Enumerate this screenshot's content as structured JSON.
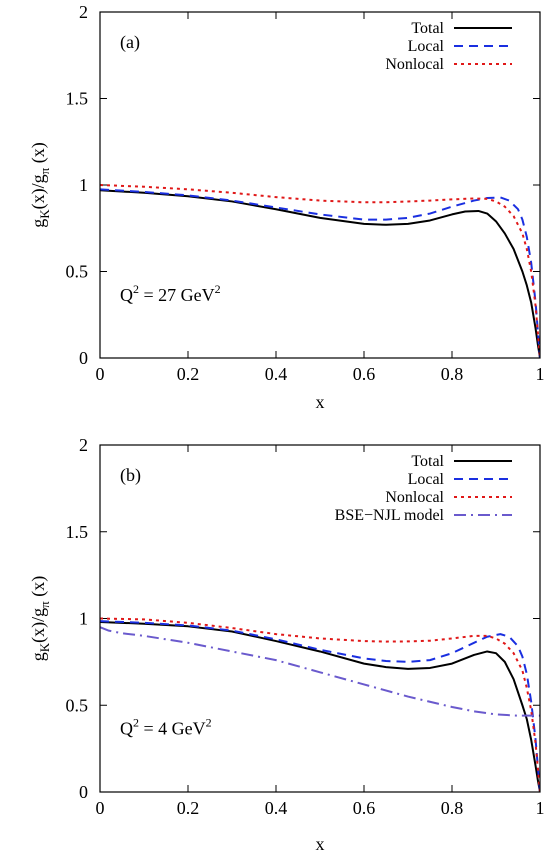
{
  "chart_data": [
    {
      "type": "line",
      "panel_label": "(a)",
      "annotation": {
        "base": "Q",
        "sup1": "2",
        "mid": " = 27 GeV",
        "sup2": "2"
      },
      "ylabel": {
        "p1": "g",
        "s1": "K",
        "p2": "(x)/g",
        "s2": "π",
        "p3": " (x)"
      },
      "xlabel": "x",
      "xlim": [
        0,
        1
      ],
      "ylim": [
        0,
        2
      ],
      "xticks": [
        {
          "v": 0,
          "label": "0"
        },
        {
          "v": 0.2,
          "label": "0.2"
        },
        {
          "v": 0.4,
          "label": "0.4"
        },
        {
          "v": 0.6,
          "label": "0.6"
        },
        {
          "v": 0.8,
          "label": "0.8"
        },
        {
          "v": 1,
          "label": "1"
        }
      ],
      "yticks": [
        {
          "v": 0,
          "label": "0"
        },
        {
          "v": 0.5,
          "label": "0.5"
        },
        {
          "v": 1,
          "label": "1"
        },
        {
          "v": 1.5,
          "label": "1.5"
        },
        {
          "v": 2,
          "label": "2"
        }
      ],
      "legend_position": "top-right",
      "series": [
        {
          "name": "Total",
          "color": "#000000",
          "style": "solid",
          "x": [
            0,
            0.1,
            0.2,
            0.3,
            0.4,
            0.5,
            0.6,
            0.65,
            0.7,
            0.75,
            0.8,
            0.83,
            0.86,
            0.88,
            0.9,
            0.92,
            0.94,
            0.96,
            0.97,
            0.98,
            0.99,
            0.995,
            1.0
          ],
          "y": [
            0.97,
            0.955,
            0.935,
            0.905,
            0.86,
            0.81,
            0.775,
            0.77,
            0.775,
            0.795,
            0.83,
            0.847,
            0.85,
            0.835,
            0.79,
            0.72,
            0.63,
            0.5,
            0.42,
            0.32,
            0.17,
            0.08,
            0
          ]
        },
        {
          "name": "Local",
          "color": "#1a2fe0",
          "style": "dashed",
          "x": [
            0,
            0.1,
            0.2,
            0.3,
            0.4,
            0.5,
            0.6,
            0.65,
            0.7,
            0.75,
            0.8,
            0.85,
            0.88,
            0.91,
            0.93,
            0.95,
            0.96,
            0.97,
            0.98,
            0.99,
            0.995,
            1.0
          ],
          "y": [
            0.975,
            0.96,
            0.94,
            0.91,
            0.87,
            0.83,
            0.8,
            0.8,
            0.81,
            0.835,
            0.875,
            0.91,
            0.925,
            0.928,
            0.91,
            0.86,
            0.8,
            0.7,
            0.55,
            0.32,
            0.16,
            0
          ]
        },
        {
          "name": "Nonlocal",
          "color": "#e01818",
          "style": "dotted",
          "x": [
            0,
            0.1,
            0.2,
            0.3,
            0.4,
            0.5,
            0.6,
            0.65,
            0.7,
            0.75,
            0.8,
            0.85,
            0.88,
            0.9,
            0.92,
            0.94,
            0.96,
            0.97,
            0.98,
            0.99,
            0.995,
            1.0
          ],
          "y": [
            1.0,
            0.99,
            0.975,
            0.955,
            0.93,
            0.91,
            0.9,
            0.9,
            0.905,
            0.91,
            0.917,
            0.922,
            0.92,
            0.905,
            0.875,
            0.82,
            0.72,
            0.63,
            0.5,
            0.3,
            0.15,
            0
          ]
        }
      ]
    },
    {
      "type": "line",
      "panel_label": "(b)",
      "annotation": {
        "base": "Q",
        "sup1": "2",
        "mid": " = 4 GeV",
        "sup2": "2"
      },
      "ylabel": {
        "p1": "g",
        "s1": "K",
        "p2": "(x)/g",
        "s2": "π",
        "p3": " (x)"
      },
      "xlabel": "x",
      "xlim": [
        0,
        1
      ],
      "ylim": [
        0,
        2
      ],
      "xticks": [
        {
          "v": 0,
          "label": "0"
        },
        {
          "v": 0.2,
          "label": "0.2"
        },
        {
          "v": 0.4,
          "label": "0.4"
        },
        {
          "v": 0.6,
          "label": "0.6"
        },
        {
          "v": 0.8,
          "label": "0.8"
        },
        {
          "v": 1,
          "label": "1"
        }
      ],
      "yticks": [
        {
          "v": 0,
          "label": "0"
        },
        {
          "v": 0.5,
          "label": "0.5"
        },
        {
          "v": 1,
          "label": "1"
        },
        {
          "v": 1.5,
          "label": "1.5"
        },
        {
          "v": 2,
          "label": "2"
        }
      ],
      "legend_position": "top-right",
      "series": [
        {
          "name": "Total",
          "color": "#000000",
          "style": "solid",
          "x": [
            0,
            0.1,
            0.2,
            0.3,
            0.4,
            0.5,
            0.6,
            0.65,
            0.7,
            0.75,
            0.8,
            0.85,
            0.88,
            0.9,
            0.92,
            0.94,
            0.96,
            0.97,
            0.98,
            0.99,
            0.995,
            1.0
          ],
          "y": [
            0.98,
            0.97,
            0.955,
            0.925,
            0.87,
            0.81,
            0.74,
            0.72,
            0.71,
            0.715,
            0.74,
            0.79,
            0.81,
            0.8,
            0.75,
            0.65,
            0.5,
            0.42,
            0.3,
            0.15,
            0.07,
            0
          ]
        },
        {
          "name": "Local",
          "color": "#1a2fe0",
          "style": "dashed",
          "x": [
            0,
            0.1,
            0.2,
            0.3,
            0.4,
            0.5,
            0.6,
            0.65,
            0.7,
            0.75,
            0.8,
            0.85,
            0.88,
            0.91,
            0.93,
            0.95,
            0.96,
            0.97,
            0.98,
            0.99,
            0.995,
            1.0
          ],
          "y": [
            0.985,
            0.975,
            0.96,
            0.93,
            0.88,
            0.82,
            0.77,
            0.755,
            0.75,
            0.76,
            0.8,
            0.86,
            0.895,
            0.91,
            0.895,
            0.84,
            0.78,
            0.68,
            0.52,
            0.3,
            0.15,
            0
          ]
        },
        {
          "name": "Nonlocal",
          "color": "#e01818",
          "style": "dotted",
          "x": [
            0,
            0.1,
            0.2,
            0.3,
            0.4,
            0.5,
            0.6,
            0.65,
            0.7,
            0.75,
            0.8,
            0.85,
            0.88,
            0.9,
            0.92,
            0.94,
            0.96,
            0.97,
            0.98,
            0.99,
            0.995,
            1.0
          ],
          "y": [
            1.0,
            0.995,
            0.975,
            0.945,
            0.91,
            0.885,
            0.87,
            0.867,
            0.868,
            0.872,
            0.885,
            0.9,
            0.9,
            0.885,
            0.855,
            0.8,
            0.7,
            0.6,
            0.47,
            0.28,
            0.14,
            0
          ]
        },
        {
          "name": "BSE−NJL model",
          "color": "#6a5acd",
          "style": "dashdot",
          "x": [
            0,
            0.02,
            0.05,
            0.1,
            0.2,
            0.3,
            0.4,
            0.5,
            0.6,
            0.7,
            0.8,
            0.85,
            0.9,
            0.95,
            1.0
          ],
          "y": [
            0.95,
            0.93,
            0.915,
            0.9,
            0.86,
            0.81,
            0.76,
            0.69,
            0.62,
            0.55,
            0.49,
            0.465,
            0.447,
            0.44,
            0.44
          ]
        }
      ]
    }
  ]
}
